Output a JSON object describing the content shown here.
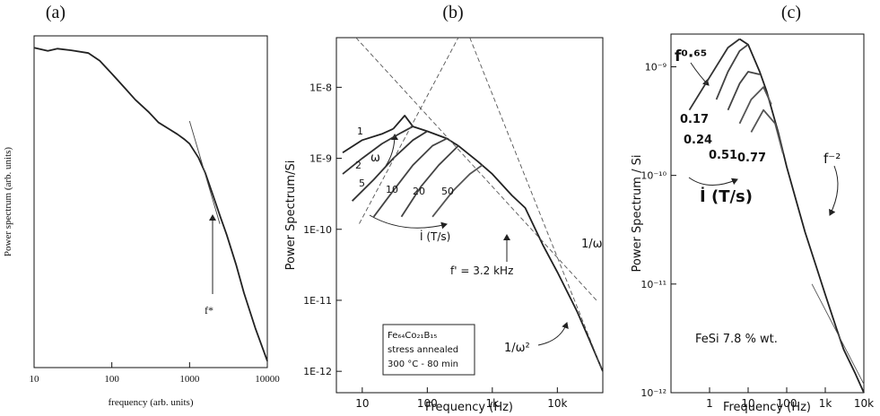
{
  "chart_data": [
    {
      "type": "line",
      "panel": "(a)",
      "xlabel": "frequency (arb. units)",
      "ylabel": "Power spectrum (arb. units)",
      "xlog": true,
      "ylog": true,
      "xlim": [
        10,
        10000
      ],
      "ylim": [
        0.0001,
        1
      ],
      "xticks": [
        10,
        100,
        1000,
        10000
      ],
      "series": [
        {
          "color": "#222222",
          "x": [
            10,
            15,
            20,
            30,
            50,
            70,
            100,
            150,
            200,
            300,
            400,
            550,
            700,
            850,
            1000,
            1300,
            1600,
            2000,
            2500,
            3000,
            4000,
            5000,
            7000,
            10000
          ],
          "values": [
            0.72,
            0.66,
            0.7,
            0.67,
            0.62,
            0.5,
            0.35,
            0.23,
            0.17,
            0.12,
            0.09,
            0.075,
            0.065,
            0.057,
            0.05,
            0.034,
            0.022,
            0.012,
            0.0065,
            0.004,
            0.0017,
            0.0008,
            0.0003,
            0.00012
          ]
        },
        {
          "color": "#444444",
          "reference": true,
          "x": [
            1000,
            2450
          ],
          "values": [
            0.094,
            0.0054
          ]
        }
      ],
      "annotations": [
        "f*"
      ]
    },
    {
      "type": "line",
      "panel": "(b)",
      "xlabel": "Frequency (Hz)",
      "ylabel": "Power Spectrum/Si",
      "xlog": true,
      "ylog": true,
      "xlim": [
        4,
        50000
      ],
      "ylim": [
        5e-13,
        5e-08
      ],
      "xticks": [
        10,
        100,
        {
          "value": 1000,
          "label": "1k"
        },
        {
          "value": 10000,
          "label": "10k"
        }
      ],
      "yticks": [
        {
          "value": 1e-08,
          "label": "1E-8"
        },
        {
          "value": 1e-09,
          "label": "1E-9"
        },
        {
          "value": 1e-10,
          "label": "1E-10"
        },
        {
          "value": 1e-11,
          "label": "1E-11"
        },
        {
          "value": 1e-12,
          "label": "1E-12"
        }
      ],
      "series": [
        {
          "color": "#222222",
          "x": [
            30,
            45,
            60,
            100,
            200,
            300,
            600,
            1000,
            2000,
            3200,
            6000,
            10000,
            20000,
            30000,
            50000
          ],
          "values": [
            2.6e-09,
            4e-09,
            2.8e-09,
            2.4e-09,
            1.9e-09,
            1.5e-09,
            9e-10,
            6e-10,
            3e-10,
            2e-10,
            6e-11,
            2.5e-11,
            7e-12,
            3e-12,
            1e-12
          ]
        },
        {
          "name": "1",
          "color": "#222222",
          "x": [
            5,
            10,
            20,
            30
          ],
          "values": [
            1.2e-09,
            1.8e-09,
            2.2e-09,
            2.6e-09
          ]
        },
        {
          "name": "2",
          "color": "#333333",
          "x": [
            5,
            10,
            20,
            40,
            60
          ],
          "values": [
            6e-10,
            1e-09,
            1.6e-09,
            2.3e-09,
            2.8e-09
          ]
        },
        {
          "name": "5",
          "color": "#333333",
          "x": [
            7,
            15,
            30,
            60,
            100
          ],
          "values": [
            2.5e-10,
            5e-10,
            1e-09,
            1.8e-09,
            2.4e-09
          ]
        },
        {
          "name": "10",
          "color": "#444444",
          "x": [
            15,
            30,
            60,
            120,
            200
          ],
          "values": [
            1.5e-10,
            3.5e-10,
            8e-10,
            1.5e-09,
            1.9e-09
          ]
        },
        {
          "name": "20",
          "color": "#444444",
          "x": [
            40,
            80,
            150,
            300
          ],
          "values": [
            1.5e-10,
            4e-10,
            8e-10,
            1.5e-09
          ]
        },
        {
          "name": "50",
          "color": "#555555",
          "x": [
            120,
            250,
            450,
            700
          ],
          "values": [
            1.5e-10,
            3.5e-10,
            6e-10,
            8e-10
          ]
        },
        {
          "color": "#555555",
          "dashed": true,
          "reference": true,
          "x": [
            9,
            300
          ],
          "values": [
            1.2e-10,
            5e-08
          ]
        },
        {
          "color": "#555555",
          "dashed": true,
          "reference": true,
          "x": [
            8,
            40000
          ],
          "values": [
            5e-08,
            1e-11
          ]
        },
        {
          "color": "#555555",
          "dashed": true,
          "reference": true,
          "x": [
            450,
            50000
          ],
          "values": [
            5e-08,
            1e-12
          ]
        }
      ],
      "annotations": [
        "ω",
        "1/ω",
        "f' = 3.2 kHz",
        "1/ω²",
        "İ (T/s)",
        "Fe₆₄Co₂₁B₁₅",
        "stress annealed",
        "300 °C - 80 min"
      ]
    },
    {
      "type": "line",
      "panel": "(c)",
      "xlabel": "Frequency (Hz)",
      "ylabel": "Power Spectrum / Si",
      "xlog": true,
      "ylog": true,
      "xlim": [
        0.1,
        10000
      ],
      "ylim": [
        1e-12,
        2e-09
      ],
      "xticks": [
        1,
        10,
        100,
        {
          "value": 1000,
          "label": "1k"
        },
        {
          "value": 10000,
          "label": "10k"
        }
      ],
      "yticks": [
        {
          "value": 1e-09,
          "label": "10⁻⁹"
        },
        {
          "value": 1e-10,
          "label": "10⁻¹⁰"
        },
        {
          "value": 1e-11,
          "label": "10⁻¹¹"
        },
        {
          "value": 1e-12,
          "label": "10⁻¹²"
        }
      ],
      "series": [
        {
          "color": "#222222",
          "x": [
            6,
            10,
            20,
            30,
            60,
            100,
            200,
            300,
            600,
            1000,
            2000,
            3000,
            6000,
            10000
          ],
          "values": [
            1.8e-09,
            1.6e-09,
            9e-10,
            6e-10,
            2.5e-10,
            1.2e-10,
            5e-11,
            3e-11,
            1.4e-11,
            8e-12,
            3.8e-12,
            2.5e-12,
            1.5e-12,
            1e-12
          ]
        },
        {
          "color": "#333333",
          "x": [
            0.3,
            1,
            3,
            6
          ],
          "values": [
            4e-10,
            8e-10,
            1.5e-09,
            1.8e-09
          ]
        },
        {
          "name": "0.17",
          "color": "#444444",
          "x": [
            1.5,
            3,
            6,
            10
          ],
          "values": [
            5e-10,
            9e-10,
            1.4e-09,
            1.6e-09
          ]
        },
        {
          "name": "0.24",
          "color": "#444444",
          "x": [
            3,
            6,
            10,
            20
          ],
          "values": [
            4e-10,
            7e-10,
            9e-10,
            8.5e-10
          ]
        },
        {
          "name": "0.51",
          "color": "#555555",
          "x": [
            6,
            12,
            25,
            40
          ],
          "values": [
            3e-10,
            5e-10,
            6.5e-10,
            4.5e-10
          ]
        },
        {
          "name": "0.77",
          "color": "#555555",
          "x": [
            12,
            25,
            50,
            80
          ],
          "values": [
            2.5e-10,
            4e-10,
            3e-10,
            1.6e-10
          ]
        },
        {
          "color": "#555555",
          "reference": true,
          "x": [
            450,
            10000
          ],
          "values": [
            1e-11,
            1.2e-12
          ]
        }
      ],
      "annotations": [
        "f⁰·⁶⁵",
        "İ (T/s)",
        "f⁻²",
        "FeSi 7.8 % wt."
      ]
    }
  ]
}
